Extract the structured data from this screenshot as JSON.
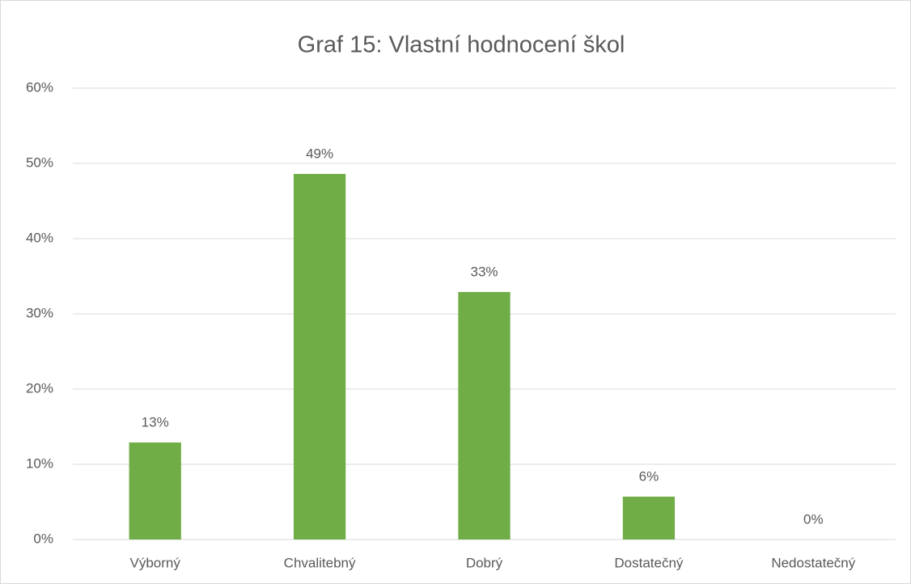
{
  "chart_data": {
    "type": "bar",
    "title": "Graf 15: Vlastní hodnocení škol",
    "categories": [
      "Výborný",
      "Chvalitebný",
      "Dobrý",
      "Dostatečný",
      "Nedostatečný"
    ],
    "values": [
      12.9,
      48.6,
      32.9,
      5.7,
      0
    ],
    "value_labels": [
      "13%",
      "49%",
      "33%",
      "6%",
      "0%"
    ],
    "color": "#70ad47",
    "ylim": [
      0,
      60
    ],
    "yticks": [
      {
        "value": 0,
        "label": "0%"
      },
      {
        "value": 10,
        "label": "10%"
      },
      {
        "value": 20,
        "label": "20%"
      },
      {
        "value": 30,
        "label": "30%"
      },
      {
        "value": 40,
        "label": "40%"
      },
      {
        "value": 50,
        "label": "50%"
      },
      {
        "value": 60,
        "label": "60%"
      }
    ],
    "grid": true
  }
}
